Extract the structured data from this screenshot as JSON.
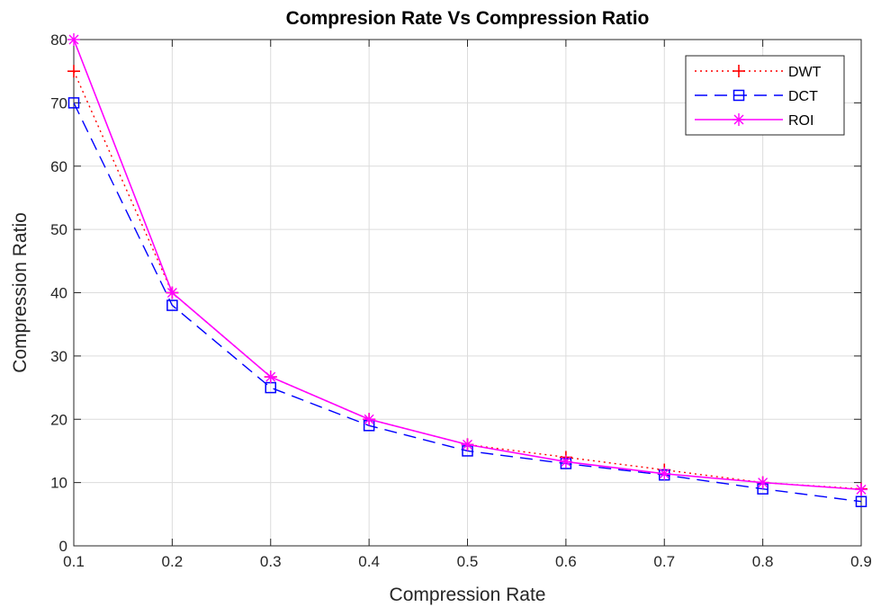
{
  "chart_data": {
    "type": "line",
    "title": "Compresion Rate Vs Compression Ratio",
    "xlabel": "Compression Rate",
    "ylabel": "Compression Ratio",
    "xlim": [
      0.1,
      0.9
    ],
    "ylim": [
      0,
      80
    ],
    "xticks": [
      "0.1",
      "0.2",
      "0.3",
      "0.4",
      "0.5",
      "0.6",
      "0.7",
      "0.8",
      "0.9"
    ],
    "yticks": [
      "0",
      "10",
      "20",
      "30",
      "40",
      "50",
      "60",
      "70",
      "80"
    ],
    "grid": true,
    "legend_position": "top-right",
    "x": [
      0.1,
      0.2,
      0.3,
      0.4,
      0.5,
      0.6,
      0.7,
      0.8,
      0.9
    ],
    "series": [
      {
        "name": "DWT",
        "values": [
          75,
          40,
          26.7,
          20,
          16,
          14,
          12,
          10,
          9
        ],
        "color": "#ff0000",
        "line": "dotted",
        "marker": "plus"
      },
      {
        "name": "DCT",
        "values": [
          70,
          38,
          25,
          19,
          15,
          13,
          11.2,
          9,
          7
        ],
        "color": "#0000ff",
        "line": "dashed",
        "marker": "square"
      },
      {
        "name": "ROI",
        "values": [
          80,
          40,
          26.7,
          20,
          16,
          13.3,
          11.4,
          10,
          8.9
        ],
        "color": "#ff00ff",
        "line": "solid",
        "marker": "asterisk"
      }
    ]
  }
}
